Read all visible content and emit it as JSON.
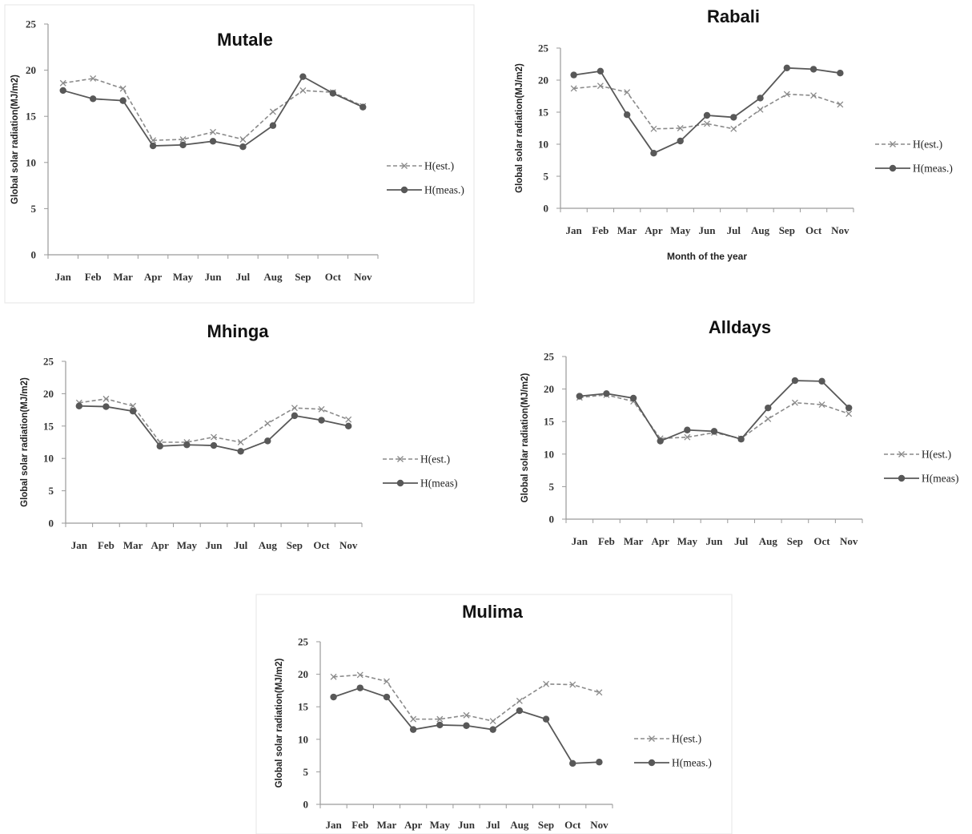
{
  "colors": {
    "estimated": "#8a8a8a",
    "measured": "#585858",
    "axis": "#9a9a9a"
  },
  "chart_data": [
    {
      "type": "line",
      "title": "Mutale",
      "xlabel": "",
      "ylabel": "Global solar radiation(MJ/m2)",
      "categories": [
        "Jan",
        "Feb",
        "Mar",
        "Apr",
        "May",
        "Jun",
        "Jul",
        "Aug",
        "Sep",
        "Oct",
        "Nov"
      ],
      "ylim": [
        0,
        25
      ],
      "yticks": [
        0,
        5,
        10,
        15,
        20,
        25
      ],
      "grid": false,
      "legend_position": "right",
      "series": [
        {
          "name": "H(est.)",
          "style": "dashed",
          "marker": "x",
          "values": [
            18.6,
            19.1,
            18.0,
            12.4,
            12.5,
            13.3,
            12.5,
            15.5,
            17.8,
            17.6,
            16.1
          ]
        },
        {
          "name": "H(meas.)",
          "style": "solid",
          "marker": "circle",
          "values": [
            17.8,
            16.9,
            16.7,
            11.8,
            11.9,
            12.3,
            11.7,
            14.0,
            19.3,
            17.5,
            16.0
          ]
        }
      ]
    },
    {
      "type": "line",
      "title": "Rabali",
      "xlabel": "Month of the year",
      "ylabel": "Global solar radiation(MJ/m2)",
      "categories": [
        "Jan",
        "Feb",
        "Mar",
        "Apr",
        "May",
        "Jun",
        "Jul",
        "Aug",
        "Sep",
        "Oct",
        "Nov"
      ],
      "ylim": [
        0,
        25
      ],
      "yticks": [
        0,
        5,
        10,
        15,
        20,
        25
      ],
      "grid": false,
      "legend_position": "right",
      "series": [
        {
          "name": "H(est.)",
          "style": "dashed",
          "marker": "x",
          "values": [
            18.7,
            19.1,
            18.1,
            12.4,
            12.5,
            13.2,
            12.4,
            15.4,
            17.8,
            17.6,
            16.2
          ]
        },
        {
          "name": "H(meas.)",
          "style": "solid",
          "marker": "circle",
          "values": [
            20.8,
            21.4,
            14.6,
            8.6,
            10.5,
            14.5,
            14.2,
            17.2,
            21.9,
            21.7,
            21.1
          ]
        }
      ]
    },
    {
      "type": "line",
      "title": "Mhinga",
      "xlabel": "",
      "ylabel": "Global solar radiation(MJ/m2)",
      "categories": [
        "Jan",
        "Feb",
        "Mar",
        "Apr",
        "May",
        "Jun",
        "Jul",
        "Aug",
        "Sep",
        "Oct",
        "Nov"
      ],
      "ylim": [
        0,
        25
      ],
      "yticks": [
        0,
        5,
        10,
        15,
        20,
        25
      ],
      "grid": false,
      "legend_position": "right",
      "series": [
        {
          "name": "H(est.)",
          "style": "dashed",
          "marker": "x",
          "values": [
            18.6,
            19.2,
            18.1,
            12.5,
            12.5,
            13.3,
            12.5,
            15.4,
            17.8,
            17.6,
            16.0
          ]
        },
        {
          "name": "H(meas)",
          "style": "solid",
          "marker": "circle",
          "values": [
            18.1,
            18.0,
            17.3,
            11.9,
            12.1,
            12.0,
            11.1,
            12.7,
            16.6,
            15.9,
            15.0
          ]
        }
      ]
    },
    {
      "type": "line",
      "title": "Alldays",
      "xlabel": "",
      "ylabel": "Global solar radiation(MJ/m2)",
      "categories": [
        "Jan",
        "Feb",
        "Mar",
        "Apr",
        "May",
        "Jun",
        "Jul",
        "Aug",
        "Sep",
        "Oct",
        "Nov"
      ],
      "ylim": [
        0,
        25
      ],
      "yticks": [
        0,
        5,
        10,
        15,
        20,
        25
      ],
      "grid": false,
      "legend_position": "right",
      "series": [
        {
          "name": "H(est.)",
          "style": "dashed",
          "marker": "x",
          "values": [
            18.7,
            19.1,
            18.1,
            12.4,
            12.6,
            13.3,
            12.4,
            15.4,
            17.9,
            17.6,
            16.2
          ]
        },
        {
          "name": "H(meas)",
          "style": "solid",
          "marker": "circle",
          "values": [
            18.9,
            19.3,
            18.6,
            12.0,
            13.7,
            13.5,
            12.3,
            17.1,
            21.3,
            21.2,
            17.1
          ]
        }
      ]
    },
    {
      "type": "line",
      "title": "Mulima",
      "xlabel": "",
      "ylabel": "Global solar radiation(MJ/m2)",
      "categories": [
        "Jan",
        "Feb",
        "Mar",
        "Apr",
        "May",
        "Jun",
        "Jul",
        "Aug",
        "Sep",
        "Oct",
        "Nov"
      ],
      "ylim": [
        0,
        25
      ],
      "yticks": [
        0,
        5,
        10,
        15,
        20,
        25
      ],
      "grid": false,
      "legend_position": "right",
      "series": [
        {
          "name": "H(est.)",
          "style": "dashed",
          "marker": "x",
          "values": [
            19.6,
            19.9,
            18.9,
            13.1,
            13.1,
            13.7,
            12.8,
            15.9,
            18.5,
            18.4,
            17.2
          ]
        },
        {
          "name": "H(meas.)",
          "style": "solid",
          "marker": "circle",
          "values": [
            16.5,
            17.9,
            16.5,
            11.5,
            12.2,
            12.1,
            11.5,
            14.4,
            13.1,
            6.3,
            6.5
          ]
        }
      ]
    }
  ]
}
